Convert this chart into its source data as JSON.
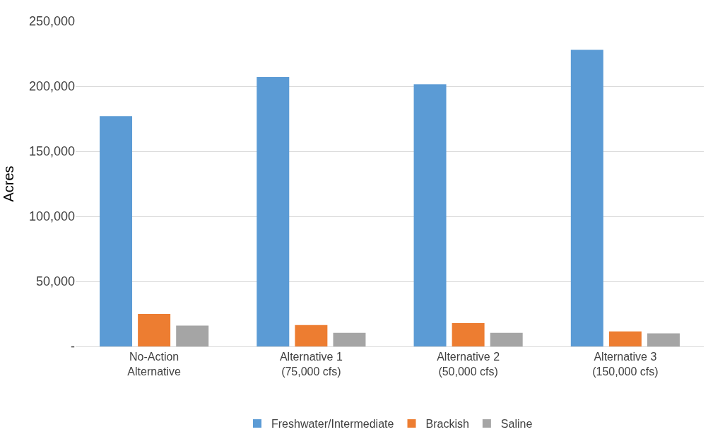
{
  "chart_data": {
    "type": "bar",
    "ylabel": "Acres",
    "categories": [
      "No-Action\nAlternative",
      "Alternative 1\n(75,000 cfs)",
      "Alternative 2\n(50,000 cfs)",
      "Alternative 3\n(150,000 cfs)"
    ],
    "series": [
      {
        "name": "Freshwater/Intermediate",
        "color": "#5b9bd5",
        "values": [
          177000,
          207000,
          201500,
          228000
        ]
      },
      {
        "name": "Brackish",
        "color": "#ed7d31",
        "values": [
          25000,
          16500,
          18000,
          11500
        ]
      },
      {
        "name": "Saline",
        "color": "#a5a5a5",
        "values": [
          16000,
          10500,
          10500,
          10000
        ]
      }
    ],
    "ylim": [
      0,
      250000
    ],
    "yticks": [
      {
        "value": 0,
        "label": "-"
      },
      {
        "value": 50000,
        "label": "50,000"
      },
      {
        "value": 100000,
        "label": "100,000"
      },
      {
        "value": 150000,
        "label": "150,000"
      },
      {
        "value": 200000,
        "label": "200,000"
      },
      {
        "value": 250000,
        "label": "250,000"
      }
    ],
    "grid": "y",
    "legend": "bottom"
  }
}
